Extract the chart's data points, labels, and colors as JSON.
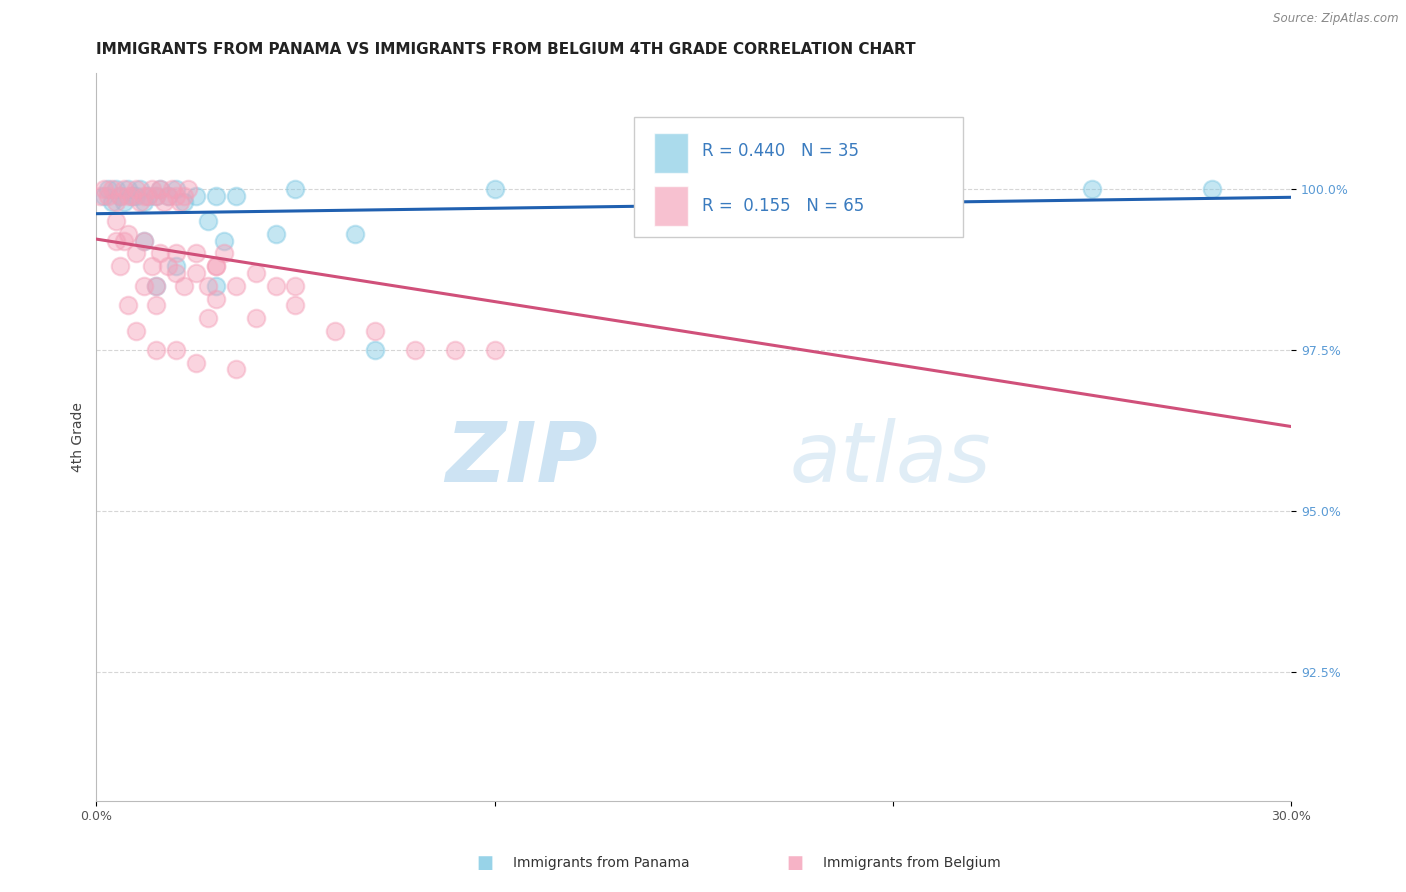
{
  "title": "IMMIGRANTS FROM PANAMA VS IMMIGRANTS FROM BELGIUM 4TH GRADE CORRELATION CHART",
  "source": "Source: ZipAtlas.com",
  "xlabel_panama": "Immigrants from Panama",
  "xlabel_belgium": "Immigrants from Belgium",
  "ylabel": "4th Grade",
  "xlim": [
    0.0,
    30.0
  ],
  "ylim": [
    90.5,
    101.8
  ],
  "yticks": [
    92.5,
    95.0,
    97.5,
    100.0
  ],
  "ytick_labels": [
    "92.5%",
    "95.0%",
    "97.5%",
    "100.0%"
  ],
  "xtick_positions": [
    0.0,
    10.0,
    20.0,
    30.0
  ],
  "xtick_labels": [
    "0.0%",
    "",
    "",
    "30.0%"
  ],
  "r_panama": 0.44,
  "n_panama": 35,
  "r_belgium": 0.155,
  "n_belgium": 65,
  "color_panama": "#7ec8e3",
  "color_belgium": "#f4a0b8",
  "color_trendline_panama": "#2060b0",
  "color_trendline_belgium": "#d0507a",
  "background_color": "#ffffff",
  "watermark_zip": "ZIP",
  "watermark_atlas": "atlas",
  "panama_x": [
    0.2,
    0.3,
    0.4,
    0.5,
    0.6,
    0.7,
    0.8,
    0.9,
    1.0,
    1.1,
    1.2,
    1.3,
    1.5,
    1.6,
    1.8,
    2.0,
    2.2,
    2.5,
    3.0,
    3.5,
    1.5,
    2.8,
    3.2,
    4.5,
    6.5,
    1.2,
    2.0,
    3.0,
    15.0,
    20.0,
    25.0,
    28.0,
    10.0,
    5.0,
    7.0
  ],
  "panama_y": [
    99.9,
    100.0,
    99.8,
    100.0,
    99.9,
    99.8,
    100.0,
    99.9,
    99.9,
    100.0,
    99.8,
    99.9,
    99.9,
    100.0,
    99.9,
    100.0,
    99.8,
    99.9,
    99.9,
    99.9,
    98.5,
    99.5,
    99.2,
    99.3,
    99.3,
    99.2,
    98.8,
    98.5,
    100.0,
    100.0,
    100.0,
    100.0,
    100.0,
    100.0,
    97.5
  ],
  "belgium_x": [
    0.1,
    0.2,
    0.3,
    0.4,
    0.5,
    0.6,
    0.7,
    0.8,
    0.9,
    1.0,
    1.1,
    1.2,
    1.3,
    1.4,
    1.5,
    1.6,
    1.7,
    1.8,
    1.9,
    2.0,
    2.1,
    2.2,
    2.3,
    0.5,
    0.8,
    1.0,
    1.2,
    1.4,
    1.6,
    1.8,
    2.0,
    2.5,
    2.8,
    3.0,
    3.2,
    3.5,
    4.0,
    4.5,
    5.0,
    1.5,
    2.2,
    3.0,
    4.0,
    5.0,
    6.0,
    7.0,
    8.0,
    9.0,
    10.0,
    2.5,
    3.5,
    1.0,
    0.8,
    1.5,
    2.0,
    0.6,
    1.2,
    2.8,
    20.0,
    0.5,
    2.0,
    3.0,
    1.5,
    2.5,
    0.7
  ],
  "belgium_y": [
    99.9,
    100.0,
    99.9,
    100.0,
    99.8,
    99.9,
    100.0,
    99.9,
    99.9,
    100.0,
    99.8,
    99.9,
    99.9,
    100.0,
    99.9,
    100.0,
    99.8,
    99.9,
    100.0,
    99.9,
    99.8,
    99.9,
    100.0,
    99.2,
    99.3,
    99.0,
    99.2,
    98.8,
    99.0,
    98.8,
    98.7,
    99.0,
    98.5,
    98.8,
    99.0,
    98.5,
    98.7,
    98.5,
    98.5,
    98.2,
    98.5,
    98.3,
    98.0,
    98.2,
    97.8,
    97.8,
    97.5,
    97.5,
    97.5,
    97.3,
    97.2,
    97.8,
    98.2,
    97.5,
    97.5,
    98.8,
    98.5,
    98.0,
    99.8,
    99.5,
    99.0,
    98.8,
    98.5,
    98.7,
    99.2
  ],
  "title_fontsize": 11,
  "axis_label_fontsize": 9,
  "tick_fontsize": 9,
  "legend_fontsize": 12
}
